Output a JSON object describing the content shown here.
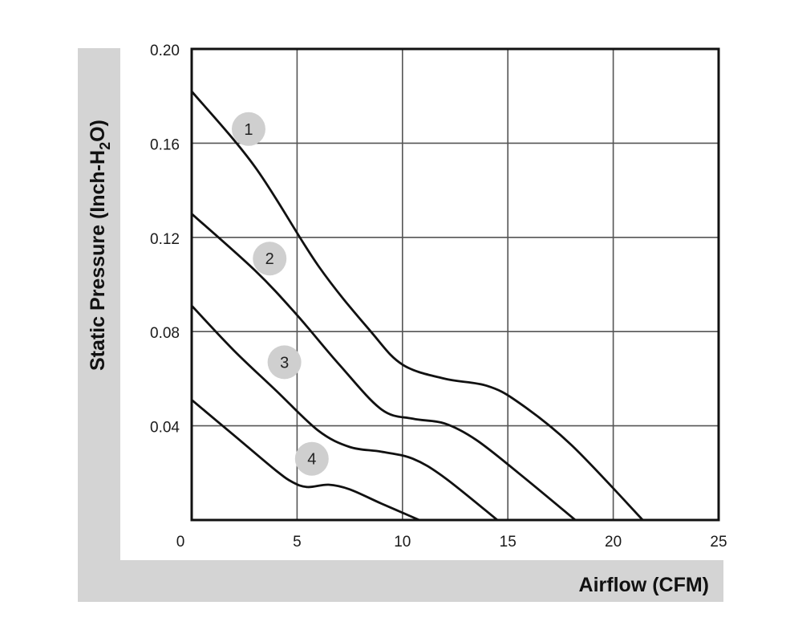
{
  "chart_data": {
    "type": "line",
    "xlabel": "Airflow (CFM)",
    "ylabel_main": "Static Pressure (Inch-H",
    "ylabel_sub": "2",
    "ylabel_tail": "O)",
    "xlim": [
      0,
      25
    ],
    "ylim": [
      0,
      0.2
    ],
    "x_ticks": [
      "0",
      "5",
      "10",
      "15",
      "20",
      "25"
    ],
    "y_ticks": [
      "0.04",
      "0.08",
      "0.12",
      "0.16",
      "0.20"
    ],
    "grid": true,
    "colors": {
      "frame_band": "#d4d4d4",
      "line": "#111111",
      "grid": "#555555",
      "marker": "#cfcfcf"
    },
    "series": [
      {
        "name": "1",
        "points": [
          [
            0,
            0.182
          ],
          [
            3,
            0.15
          ],
          [
            6,
            0.108
          ],
          [
            8.5,
            0.08
          ],
          [
            10,
            0.066
          ],
          [
            12,
            0.06
          ],
          [
            14,
            0.057
          ],
          [
            15.5,
            0.05
          ],
          [
            18,
            0.032
          ],
          [
            21.4,
            0.0
          ]
        ]
      },
      {
        "name": "2",
        "points": [
          [
            0,
            0.13
          ],
          [
            3,
            0.106
          ],
          [
            5,
            0.087
          ],
          [
            7,
            0.066
          ],
          [
            9,
            0.047
          ],
          [
            10.5,
            0.043
          ],
          [
            12,
            0.041
          ],
          [
            13.5,
            0.034
          ],
          [
            15.5,
            0.02
          ],
          [
            18.2,
            0.0
          ]
        ]
      },
      {
        "name": "3",
        "points": [
          [
            0,
            0.091
          ],
          [
            2,
            0.072
          ],
          [
            4,
            0.055
          ],
          [
            6,
            0.038
          ],
          [
            7.5,
            0.031
          ],
          [
            9,
            0.029
          ],
          [
            10.5,
            0.026
          ],
          [
            12,
            0.018
          ],
          [
            14.5,
            0.0
          ]
        ]
      },
      {
        "name": "4",
        "points": [
          [
            0,
            0.051
          ],
          [
            2,
            0.036
          ],
          [
            4,
            0.021
          ],
          [
            4.8,
            0.016
          ],
          [
            5.5,
            0.014
          ],
          [
            6.5,
            0.015
          ],
          [
            7.5,
            0.013
          ],
          [
            9,
            0.007
          ],
          [
            10.8,
            0.0
          ]
        ]
      }
    ],
    "markers": [
      {
        "label": "1",
        "x": 2.7,
        "y": 0.166
      },
      {
        "label": "2",
        "x": 3.7,
        "y": 0.111
      },
      {
        "label": "3",
        "x": 4.4,
        "y": 0.067
      },
      {
        "label": "4",
        "x": 5.7,
        "y": 0.026
      }
    ]
  }
}
